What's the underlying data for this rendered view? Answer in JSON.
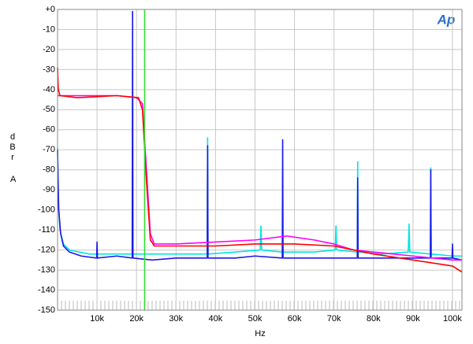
{
  "chart_data": {
    "type": "line",
    "logo_text": "Ap",
    "x_label": "Hz",
    "y_label": "dBr",
    "y_label_weighting": "A",
    "xlim": [
      0,
      102400
    ],
    "ylim": [
      -150,
      0
    ],
    "xticks": [
      {
        "value": 10000,
        "label": "10k"
      },
      {
        "value": 20000,
        "label": "20k"
      },
      {
        "value": 30000,
        "label": "30k"
      },
      {
        "value": 40000,
        "label": "40k"
      },
      {
        "value": 50000,
        "label": "50k"
      },
      {
        "value": 60000,
        "label": "60k"
      },
      {
        "value": 70000,
        "label": "70k"
      },
      {
        "value": 80000,
        "label": "80k"
      },
      {
        "value": 90000,
        "label": "90k"
      },
      {
        "value": 100000,
        "label": "100k"
      }
    ],
    "yticks": [
      {
        "value": 0,
        "label": "+0"
      },
      -10,
      -20,
      -30,
      -40,
      -50,
      -60,
      -70,
      -80,
      -90,
      -100,
      -110,
      -120,
      -130,
      -140,
      -150
    ],
    "grid": true,
    "series": [
      {
        "color": "#00e5e5",
        "x": [
          0,
          200,
          600,
          1500,
          3000,
          8000,
          15000,
          22000,
          30000,
          37900,
          38000,
          38100,
          45000,
          51300,
          51500,
          51700,
          56900,
          57000,
          57100,
          65000,
          70300,
          70500,
          70700,
          75900,
          76000,
          76100,
          82000,
          88800,
          89000,
          89200,
          94400,
          94500,
          94600,
          100000,
          102400
        ],
        "values": [
          -69,
          -95,
          -110,
          -117,
          -120,
          -122,
          -122,
          -122,
          -122,
          -122,
          -64,
          -122,
          -121,
          -120,
          -108,
          -120,
          -121,
          -120,
          -121,
          -121,
          -120,
          -108,
          -120,
          -121,
          -76,
          -121,
          -122,
          -121,
          -107,
          -121,
          -122,
          -79,
          -122,
          -123,
          -123
        ]
      },
      {
        "color": "#1a1ae6",
        "x": [
          0,
          300,
          800,
          1500,
          3000,
          6000,
          9900,
          10000,
          10100,
          15000,
          18900,
          19000,
          19100,
          24000,
          30000,
          37900,
          38000,
          38100,
          45000,
          50000,
          56900,
          57000,
          57100,
          63000,
          70000,
          75900,
          76000,
          76100,
          85000,
          94400,
          94500,
          94600,
          99900,
          100000,
          100100,
          102400
        ],
        "values": [
          -70,
          -100,
          -112,
          -118,
          -121,
          -123,
          -124,
          -116,
          -124,
          -123,
          -124,
          -1,
          -124,
          -125,
          -124,
          -124,
          -68,
          -124,
          -124,
          -123,
          -124,
          -65,
          -124,
          -124,
          -124,
          -124,
          -84,
          -124,
          -124,
          -124,
          -80,
          -124,
          -124,
          -117,
          -124,
          -125
        ]
      },
      {
        "color": "#ff00ff",
        "x": [
          0,
          5000,
          15000,
          20000,
          21500,
          22500,
          23500,
          24500,
          30000,
          40000,
          50000,
          58000,
          65000,
          70000,
          75000,
          80000,
          90000,
          100000,
          102400
        ],
        "values": [
          -43,
          -43,
          -43,
          -44,
          -47,
          -80,
          -112,
          -117,
          -117,
          -116,
          -115,
          -113,
          -115,
          -117,
          -120,
          -121,
          -123,
          -125,
          -125
        ]
      },
      {
        "color": "#ff0000",
        "x": [
          0,
          200,
          600,
          5000,
          15000,
          20500,
          21500,
          22500,
          23500,
          24500,
          30000,
          40000,
          50000,
          60000,
          70000,
          80000,
          90000,
          100000,
          102400
        ],
        "values": [
          -29,
          -40,
          -43,
          -44,
          -43,
          -44,
          -50,
          -85,
          -115,
          -118,
          -118,
          -118,
          -117,
          -117,
          -118,
          -122,
          -125,
          -128,
          -131
        ]
      },
      {
        "color": "#33dd33",
        "x": [
          22050,
          22050
        ],
        "values": [
          0,
          -150
        ]
      }
    ]
  }
}
